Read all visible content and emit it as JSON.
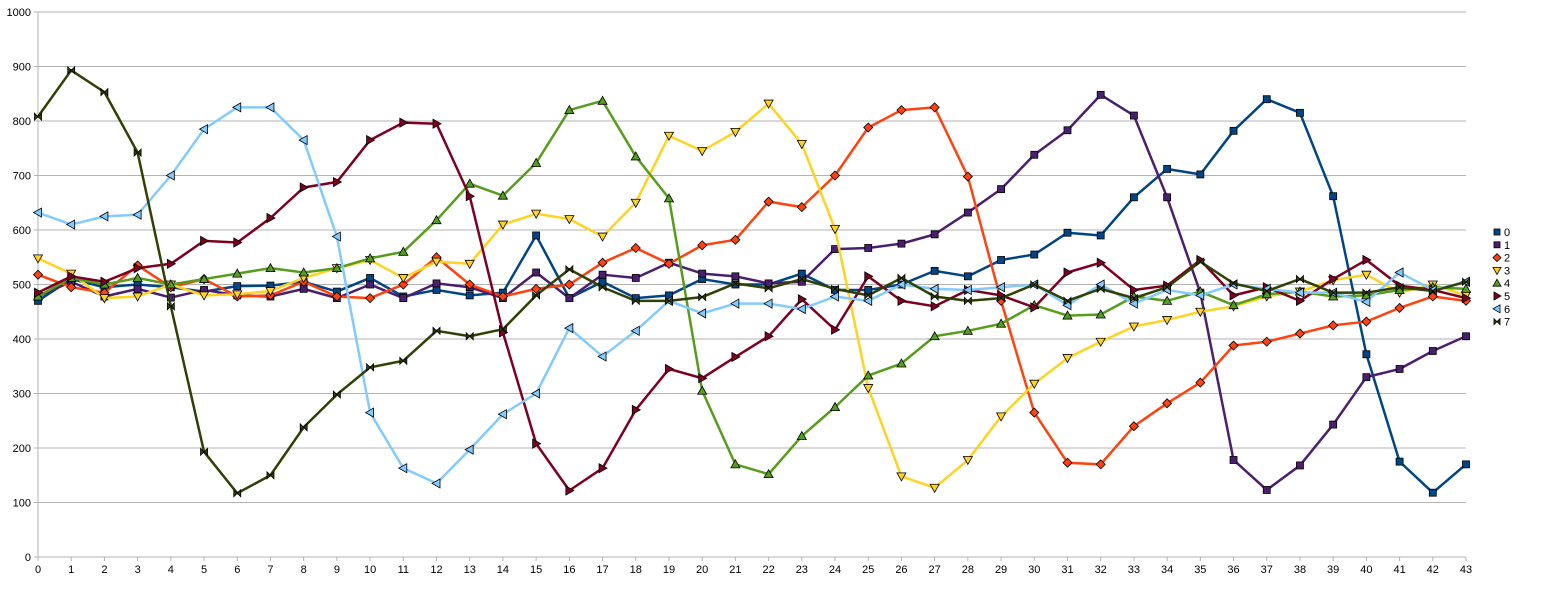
{
  "chart_data": {
    "type": "line",
    "title": "",
    "xlabel": "",
    "ylabel": "",
    "ylim": [
      0,
      1000
    ],
    "yticks": [
      0,
      100,
      200,
      300,
      400,
      500,
      600,
      700,
      800,
      900,
      1000
    ],
    "x": [
      0,
      1,
      2,
      3,
      4,
      5,
      6,
      7,
      8,
      9,
      10,
      11,
      12,
      13,
      14,
      15,
      16,
      17,
      18,
      19,
      20,
      21,
      22,
      23,
      24,
      25,
      26,
      27,
      28,
      29,
      30,
      31,
      32,
      33,
      34,
      35,
      36,
      37,
      38,
      39,
      40,
      41,
      42,
      43
    ],
    "grid": "horizontal",
    "legend": "right",
    "series": [
      {
        "name": "0",
        "color": "#004586",
        "marker": "square",
        "values": [
          470,
          510,
          495,
          500,
          495,
          487,
          497,
          498,
          505,
          487,
          512,
          478,
          490,
          480,
          485,
          590,
          475,
          505,
          475,
          480,
          510,
          500,
          500,
          520,
          490,
          490,
          500,
          525,
          515,
          545,
          555,
          595,
          590,
          660,
          712,
          702,
          782,
          840,
          815,
          662,
          372,
          175,
          118,
          170
        ]
      },
      {
        "name": "1",
        "color": "#4B1F6F",
        "marker": "square",
        "values": [
          478,
          505,
          478,
          492,
          476,
          490,
          480,
          478,
          492,
          475,
          500,
          475,
          502,
          495,
          475,
          522,
          475,
          518,
          512,
          540,
          520,
          515,
          502,
          505,
          565,
          567,
          575,
          592,
          632,
          675,
          738,
          783,
          848,
          810,
          660,
          485,
          178,
          123,
          168,
          243,
          330,
          345,
          378,
          405
        ]
      },
      {
        "name": "2",
        "color": "#FF420E",
        "marker": "diamond",
        "values": [
          518,
          495,
          485,
          535,
          495,
          510,
          478,
          480,
          505,
          478,
          475,
          500,
          550,
          500,
          478,
          492,
          500,
          540,
          567,
          538,
          572,
          582,
          652,
          642,
          700,
          788,
          820,
          825,
          698,
          470,
          265,
          173,
          170,
          240,
          282,
          320,
          388,
          395,
          410,
          425,
          432,
          457,
          478,
          470
        ]
      },
      {
        "name": "3",
        "color": "#FFD320",
        "marker": "triangle-down",
        "values": [
          548,
          520,
          475,
          478,
          500,
          480,
          482,
          488,
          512,
          530,
          545,
          512,
          542,
          538,
          610,
          630,
          620,
          588,
          650,
          773,
          745,
          780,
          832,
          758,
          602,
          310,
          148,
          127,
          178,
          258,
          318,
          365,
          395,
          423,
          435,
          450,
          460,
          478,
          487,
          508,
          518,
          485,
          500,
          480
        ]
      },
      {
        "name": "4",
        "color": "#579D1C",
        "marker": "triangle-up",
        "values": [
          478,
          512,
          500,
          512,
          500,
          510,
          520,
          530,
          522,
          530,
          548,
          560,
          618,
          685,
          663,
          723,
          820,
          837,
          735,
          658,
          305,
          170,
          152,
          222,
          275,
          333,
          355,
          405,
          415,
          428,
          462,
          443,
          445,
          478,
          470,
          487,
          462,
          482,
          487,
          478,
          480,
          490,
          495,
          492
        ]
      },
      {
        "name": "5",
        "color": "#7E0021",
        "marker": "triangle-right",
        "values": [
          485,
          515,
          505,
          530,
          538,
          580,
          577,
          622,
          678,
          688,
          765,
          797,
          795,
          662,
          412,
          208,
          122,
          163,
          270,
          345,
          328,
          367,
          405,
          473,
          417,
          515,
          470,
          460,
          490,
          480,
          458,
          522,
          540,
          490,
          498,
          545,
          480,
          495,
          470,
          510,
          545,
          498,
          490,
          475
        ]
      },
      {
        "name": "6",
        "color": "#83CAFF",
        "marker": "triangle-left",
        "values": [
          632,
          610,
          625,
          628,
          700,
          785,
          825,
          825,
          765,
          588,
          265,
          163,
          135,
          197,
          262,
          300,
          420,
          368,
          415,
          470,
          447,
          465,
          465,
          455,
          478,
          470,
          500,
          492,
          490,
          495,
          500,
          462,
          500,
          465,
          490,
          480,
          500,
          492,
          485,
          485,
          468,
          522,
          490,
          505
        ]
      },
      {
        "name": "7",
        "color": "#314004",
        "marker": "bowtie",
        "values": [
          808,
          893,
          853,
          742,
          460,
          193,
          117,
          150,
          238,
          298,
          348,
          360,
          415,
          405,
          418,
          480,
          528,
          495,
          470,
          470,
          477,
          502,
          493,
          510,
          492,
          480,
          512,
          478,
          470,
          475,
          500,
          470,
          492,
          475,
          495,
          542,
          502,
          488,
          510,
          485,
          485,
          495,
          488,
          505
        ]
      }
    ]
  }
}
